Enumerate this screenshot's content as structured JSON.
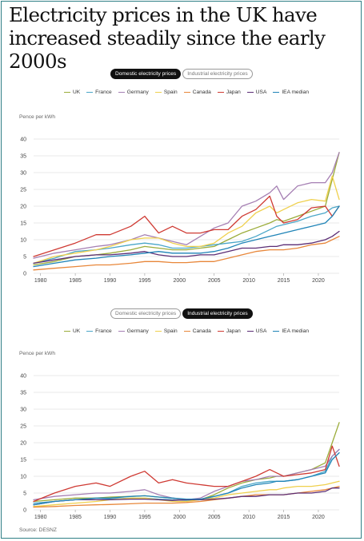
{
  "title": "Electricity prices in the UK have increased steadily since the early 2000s",
  "source": "Source: DESNZ",
  "colors": {
    "UK": "#9bac3a",
    "France": "#4aa6c8",
    "Germany": "#a57fb3",
    "Spain": "#efd04d",
    "Canada": "#e8873a",
    "Japan": "#cf3a33",
    "USA": "#5b2d75",
    "IEA median": "#1f84b7"
  },
  "panels": [
    {
      "toggle": {
        "options": [
          "Domestic electricity prices",
          "Industrial electricity prices"
        ],
        "active": 0
      },
      "legend": [
        "UK",
        "France",
        "Germany",
        "Spain",
        "Canada",
        "Japan",
        "USA",
        "IEA median"
      ]
    },
    {
      "toggle": {
        "options": [
          "Domestic electricity prices",
          "Industrial electricity prices"
        ],
        "active": 1
      },
      "legend": [
        "UK",
        "France",
        "Germany",
        "Spain",
        "Canada",
        "Japan",
        "USA",
        "IEA median"
      ]
    }
  ],
  "chart_data": [
    {
      "type": "line",
      "title": "Domestic electricity prices",
      "ylabel": "Pence per kWh",
      "ylim": [
        0,
        40
      ],
      "yticks": [
        0,
        5,
        10,
        15,
        20,
        25,
        30,
        35,
        40
      ],
      "xlim": [
        1979,
        2023
      ],
      "xticks": [
        1980,
        1985,
        1990,
        1995,
        2000,
        2005,
        2010,
        2015,
        2020
      ],
      "grid": true,
      "x": [
        1979,
        1982,
        1985,
        1988,
        1990,
        1993,
        1995,
        1997,
        1999,
        2001,
        2003,
        2005,
        2007,
        2009,
        2011,
        2013,
        2014,
        2015,
        2017,
        2019,
        2021,
        2022,
        2023
      ],
      "series": [
        {
          "name": "UK",
          "values": [
            2.5,
            3.5,
            5,
            5.5,
            6,
            7,
            8,
            7.5,
            7,
            7,
            7.5,
            8,
            10,
            12,
            13.5,
            15,
            16,
            15.5,
            17,
            18.5,
            20,
            28,
            36
          ]
        },
        {
          "name": "France",
          "values": [
            3,
            4.5,
            6.5,
            7,
            7.5,
            8.5,
            9,
            8.5,
            7.5,
            7.5,
            8,
            8.5,
            9,
            9.5,
            11,
            13,
            14,
            14.5,
            15.5,
            17,
            18,
            19.5,
            20
          ]
        },
        {
          "name": "Germany",
          "values": [
            4.5,
            6,
            7,
            8,
            8.5,
            10,
            11.5,
            10.5,
            9.5,
            8.5,
            11,
            13.5,
            15,
            20,
            21.5,
            24,
            26,
            22,
            26,
            27,
            27,
            30,
            36
          ]
        },
        {
          "name": "Spain",
          "values": [
            3,
            5,
            6,
            7,
            8,
            10,
            10.5,
            10.5,
            9,
            8,
            8,
            9,
            12,
            14,
            18,
            20,
            18,
            19,
            21,
            22,
            21.5,
            29,
            22
          ]
        },
        {
          "name": "Canada",
          "values": [
            1,
            1.5,
            2,
            2.5,
            2.5,
            3,
            3.5,
            3.5,
            3.2,
            3.2,
            3.5,
            3.5,
            4.5,
            5.5,
            6.5,
            7,
            7,
            7,
            7.5,
            8.5,
            9,
            10,
            11
          ]
        },
        {
          "name": "Japan",
          "values": [
            5,
            7,
            9,
            11.5,
            11.5,
            14,
            17,
            12,
            14,
            12,
            12,
            13,
            13,
            17,
            19,
            23,
            17,
            15,
            16,
            19.5,
            20,
            17,
            20
          ]
        },
        {
          "name": "USA",
          "values": [
            3,
            4,
            5,
            5.5,
            5.5,
            6,
            6.5,
            5.5,
            5,
            5,
            5.5,
            5.5,
            6.5,
            7.5,
            7.5,
            8,
            8,
            8.5,
            8.5,
            9,
            10,
            11,
            12.5
          ]
        },
        {
          "name": "IEA median",
          "values": [
            2,
            3,
            4,
            4.5,
            5,
            5.5,
            6,
            6.5,
            6,
            6,
            6,
            6.5,
            7.5,
            9,
            10,
            11,
            11.5,
            12,
            13,
            14,
            15,
            17,
            20
          ]
        }
      ]
    },
    {
      "type": "line",
      "title": "Industrial electricity prices",
      "ylabel": "Pence per kWh",
      "ylim": [
        0,
        40
      ],
      "yticks": [
        0,
        5,
        10,
        15,
        20,
        25,
        30,
        35,
        40
      ],
      "xlim": [
        1979,
        2023
      ],
      "xticks": [
        1980,
        1985,
        1990,
        1995,
        2000,
        2005,
        2010,
        2015,
        2020
      ],
      "grid": true,
      "x": [
        1979,
        1982,
        1985,
        1988,
        1990,
        1993,
        1995,
        1997,
        1999,
        2001,
        2003,
        2005,
        2007,
        2009,
        2011,
        2013,
        2014,
        2015,
        2017,
        2019,
        2021,
        2022,
        2023
      ],
      "series": [
        {
          "name": "UK",
          "values": [
            2.5,
            3,
            3.5,
            3.5,
            3.8,
            4,
            4.2,
            3.8,
            3.5,
            3,
            3,
            4.5,
            6.5,
            8,
            9,
            9.5,
            10,
            10,
            11,
            12,
            14,
            20,
            26
          ]
        },
        {
          "name": "France",
          "values": [
            2,
            2.5,
            3,
            3,
            3.2,
            3.5,
            3.5,
            3.2,
            3,
            2.8,
            3,
            4,
            5,
            7,
            8,
            8.5,
            8.5,
            8.5,
            9,
            10,
            11.5,
            16,
            18
          ]
        },
        {
          "name": "Germany",
          "values": [
            3,
            4,
            4.5,
            5,
            5,
            5.5,
            6,
            4.5,
            3.5,
            3,
            3.5,
            5.5,
            7,
            8.5,
            9,
            10,
            10,
            10,
            11,
            12,
            13,
            16,
            18
          ]
        },
        {
          "name": "Spain",
          "values": [
            1,
            1.5,
            2,
            2.5,
            3,
            3.5,
            3.5,
            3,
            2.5,
            2.5,
            3,
            3.5,
            4.5,
            5,
            5.5,
            6,
            6,
            6.5,
            7,
            7,
            7.5,
            8,
            8.5
          ]
        },
        {
          "name": "Canada",
          "values": [
            0.8,
            1,
            1.3,
            1.5,
            1.6,
            1.8,
            2,
            2,
            2,
            2.2,
            2.5,
            3,
            3.5,
            4,
            4.5,
            4.5,
            4.5,
            4.5,
            5,
            5.5,
            6,
            6.5,
            7
          ]
        },
        {
          "name": "Japan",
          "values": [
            2.5,
            5,
            7,
            8,
            7,
            10,
            11.5,
            8,
            9,
            8,
            7.5,
            7,
            7,
            8.5,
            10,
            12,
            11,
            10,
            10.5,
            11,
            12,
            19,
            13
          ]
        },
        {
          "name": "USA",
          "values": [
            1.5,
            2.5,
            3,
            3,
            3,
            3.2,
            3.2,
            3,
            2.8,
            3,
            3,
            3.2,
            3.5,
            4,
            4,
            4.5,
            4.5,
            4.5,
            5,
            5,
            5.5,
            6.5,
            6.5
          ]
        },
        {
          "name": "IEA median",
          "values": [
            1.5,
            2.5,
            3,
            3.5,
            3.5,
            4,
            4.2,
            3.8,
            3.5,
            3.2,
            3.2,
            4,
            5,
            6.5,
            7.5,
            8,
            8.5,
            8.5,
            9,
            10,
            11,
            15,
            17
          ]
        }
      ]
    }
  ]
}
